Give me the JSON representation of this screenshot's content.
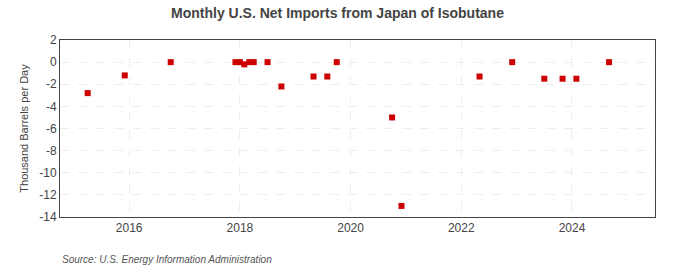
{
  "chart_data": {
    "type": "scatter",
    "title": "Monthly U.S. Net Imports from Japan of Isobutane",
    "y_label": "Thousand Barrels per Day",
    "annotations": [
      "Source: U.S. Energy Information Administration"
    ],
    "x": [
      2015.25,
      2015.92,
      2016.75,
      2017.92,
      2018.0,
      2018.08,
      2018.17,
      2018.25,
      2018.5,
      2018.75,
      2019.33,
      2019.58,
      2019.75,
      2020.75,
      2020.92,
      2022.33,
      2022.92,
      2023.5,
      2023.83,
      2024.08,
      2024.67
    ],
    "values": [
      -2.8,
      -1.2,
      0.0,
      0.0,
      0.0,
      -0.2,
      0.0,
      0.0,
      0.0,
      -2.2,
      -1.3,
      -1.3,
      0.0,
      -5.0,
      -13.0,
      -1.3,
      0.0,
      -1.5,
      -1.5,
      -1.5,
      0.0
    ],
    "color": "#cc0000",
    "marker": "square",
    "xlim": [
      2014.75,
      2025.5
    ],
    "xticks": [
      2016,
      2018,
      2020,
      2022,
      2024
    ],
    "ylim": [
      -14,
      2
    ],
    "yticks": [
      2,
      0,
      -2,
      -4,
      -6,
      -8,
      -10,
      -12,
      -14
    ],
    "grid": true
  }
}
